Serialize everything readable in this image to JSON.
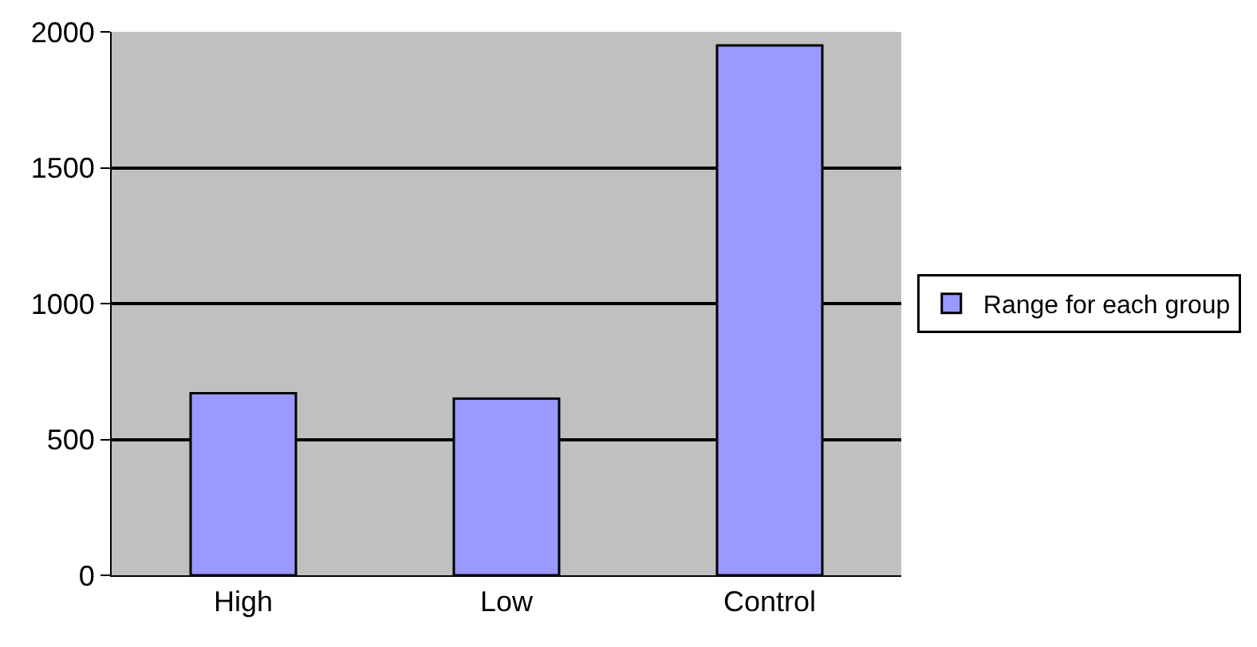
{
  "chart_data": {
    "type": "bar",
    "categories": [
      "High",
      "Low",
      "Control"
    ],
    "series": [
      {
        "name": "Range for each group",
        "color": "#9999ff",
        "values": [
          670,
          650,
          1950
        ]
      }
    ],
    "ylim": [
      0,
      2000
    ],
    "yticks": [
      0,
      500,
      1000,
      1500,
      2000
    ],
    "grid": "y",
    "legend": "right"
  }
}
